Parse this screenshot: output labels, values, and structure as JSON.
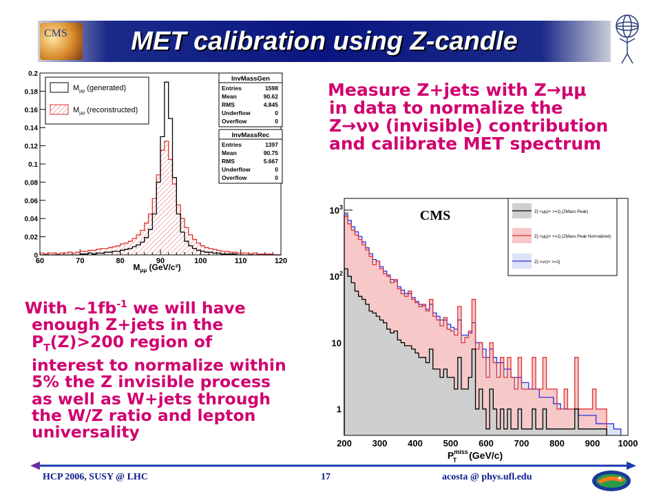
{
  "slide": {
    "title": "MET calibration using Z-candle",
    "logo_text": "CMS"
  },
  "right_text": {
    "line1": "Measure Z+jets with Z→μμ",
    "line2": "in data to normalize the",
    "line3": "Z→νν (invisible) contribution",
    "line4": "and calibrate MET spectrum"
  },
  "left_text": {
    "line1_a": "With ~1fb",
    "line1_sup": "-1",
    "line1_b": " we will have",
    "line2": "enough Z+jets in the",
    "line3_a": "P",
    "line3_sub": "T",
    "line3_b": "(Z)>200 region of",
    "line4": "interest to normalize within",
    "line5": "5% the Z invisible process",
    "line6": "as well as W+jets through",
    "line7": "the W/Z ratio and lepton",
    "line8": "universality"
  },
  "footer": {
    "left": "HCP 2006,    SUSY @ LHC",
    "page": "17",
    "right": "acosta @ phys.ufl.edu"
  },
  "chart_data": [
    {
      "type": "line",
      "title": "",
      "xlabel": "M",
      "xlabel_sub": "μμ",
      "xlabel_unit": " (GeV/c²)",
      "ylabel": "",
      "xlim": [
        60,
        120
      ],
      "ylim": [
        0,
        0.2
      ],
      "x_ticks": [
        "60",
        "70",
        "80",
        "90",
        "100",
        "110",
        "120"
      ],
      "y_ticks": [
        "0",
        "0.02",
        "0.04",
        "0.06",
        "0.08",
        "0.1",
        "0.12",
        "0.14",
        "0.16",
        "0.18",
        "0.2"
      ],
      "legend": [
        {
          "label_main": "M",
          "label_sub": "μμ",
          "label_rest": " (generated)",
          "color": "#000000"
        },
        {
          "label_main": "M",
          "label_sub": "μμ",
          "label_rest": " (reconstructed)",
          "color": "#e03030"
        }
      ],
      "stats": [
        {
          "name": "InvMassGen",
          "rows": [
            [
              "Entries",
              "1598"
            ],
            [
              "Mean",
              "90.62"
            ],
            [
              "RMS",
              "4.845"
            ],
            [
              "Underflow",
              "0"
            ],
            [
              "Overflow",
              "0"
            ]
          ]
        },
        {
          "name": "InvMassRec",
          "rows": [
            [
              "Entries",
              "1397"
            ],
            [
              "Mean",
              "90.75"
            ],
            [
              "RMS",
              "5.667"
            ],
            [
              "Underflow",
              "0"
            ],
            [
              "Overflow",
              "0"
            ]
          ]
        }
      ],
      "series": [
        {
          "name": "M μμ (generated)",
          "x": [
            60,
            61,
            62,
            63,
            64,
            65,
            66,
            67,
            68,
            69,
            70,
            71,
            72,
            73,
            74,
            75,
            76,
            77,
            78,
            79,
            80,
            81,
            82,
            83,
            84,
            85,
            86,
            87,
            88,
            89,
            90,
            91,
            92,
            93,
            94,
            95,
            96,
            97,
            98,
            99,
            100,
            101,
            102,
            103,
            104,
            105,
            106,
            107,
            108,
            109,
            110,
            111,
            112,
            113,
            114,
            115,
            116,
            117,
            118,
            119
          ],
          "values": [
            0,
            0,
            0,
            0,
            0,
            0,
            0,
            0,
            0,
            0,
            0.001,
            0.001,
            0.002,
            0.001,
            0.002,
            0.002,
            0.003,
            0.003,
            0.004,
            0.004,
            0.005,
            0.006,
            0.007,
            0.009,
            0.011,
            0.014,
            0.019,
            0.028,
            0.045,
            0.08,
            0.13,
            0.19,
            0.15,
            0.085,
            0.045,
            0.025,
            0.015,
            0.01,
            0.007,
            0.005,
            0.004,
            0.003,
            0.003,
            0.002,
            0.002,
            0.001,
            0.001,
            0.001,
            0.001,
            0,
            0,
            0,
            0,
            0,
            0,
            0,
            0,
            0,
            0,
            0
          ]
        },
        {
          "name": "M μμ (reconstructed)",
          "x": [
            60,
            61,
            62,
            63,
            64,
            65,
            66,
            67,
            68,
            69,
            70,
            71,
            72,
            73,
            74,
            75,
            76,
            77,
            78,
            79,
            80,
            81,
            82,
            83,
            84,
            85,
            86,
            87,
            88,
            89,
            90,
            91,
            92,
            93,
            94,
            95,
            96,
            97,
            98,
            99,
            100,
            101,
            102,
            103,
            104,
            105,
            106,
            107,
            108,
            109,
            110,
            111,
            112,
            113,
            114,
            115,
            116,
            117,
            118,
            119
          ],
          "values": [
            0.002,
            0.001,
            0.002,
            0.002,
            0.001,
            0.002,
            0.002,
            0.003,
            0.002,
            0.003,
            0.004,
            0.004,
            0.005,
            0.005,
            0.006,
            0.007,
            0.007,
            0.008,
            0.009,
            0.01,
            0.012,
            0.013,
            0.015,
            0.018,
            0.022,
            0.027,
            0.035,
            0.045,
            0.062,
            0.088,
            0.115,
            0.125,
            0.105,
            0.078,
            0.055,
            0.04,
            0.03,
            0.022,
            0.017,
            0.013,
            0.01,
            0.008,
            0.007,
            0.006,
            0.005,
            0.004,
            0.004,
            0.003,
            0.003,
            0.002,
            0.002,
            0.002,
            0.001,
            0.002,
            0.001,
            0.001,
            0.001,
            0.001,
            0,
            0
          ]
        }
      ]
    },
    {
      "type": "line",
      "title": "CMS",
      "xlabel": "P",
      "xlabel_sup": "miss",
      "xlabel_sub": "T",
      "xlabel_unit": " (GeV/c)",
      "ylabel": "",
      "log_y": true,
      "xlim": [
        200,
        1000
      ],
      "ylim": [
        0.4,
        1500
      ],
      "x_ticks": [
        "200",
        "300",
        "400",
        "500",
        "600",
        "700",
        "800",
        "900",
        "1000"
      ],
      "y_ticks": [
        {
          "base": "10",
          "exp": "3",
          "value": 1000
        },
        {
          "base": "10",
          "exp": "2",
          "value": 100
        },
        {
          "base": "10",
          "exp": "",
          "value": 10
        },
        {
          "base": "1",
          "exp": "",
          "value": 1
        }
      ],
      "legend": [
        {
          "label": "Z(->μμ)+ >=2j (ZMass Peak)",
          "color": "#000000"
        },
        {
          "label": "Z(->μμ)+ >=2j (ZMass Peak Normalized)",
          "color": "#e03030"
        },
        {
          "label": "Z(->νν)+ >=2j",
          "color": "#3030e0"
        }
      ],
      "series": [
        {
          "name": "Z(->μμ)+ >=2j (ZMass Peak)",
          "x": [
            200,
            210,
            220,
            230,
            240,
            250,
            260,
            270,
            280,
            290,
            300,
            310,
            320,
            330,
            340,
            350,
            360,
            370,
            380,
            390,
            400,
            410,
            420,
            430,
            440,
            450,
            460,
            470,
            480,
            490,
            500,
            510,
            520,
            530,
            540,
            550,
            560,
            570,
            580,
            590,
            600,
            610,
            620,
            630,
            640,
            650,
            660,
            670,
            680,
            690,
            700,
            710,
            720,
            730,
            740,
            750,
            760,
            770,
            780,
            790,
            800,
            810,
            820,
            830,
            840,
            850,
            860,
            870,
            880,
            890,
            900,
            910,
            920,
            930
          ],
          "values": [
            130,
            100,
            80,
            60,
            50,
            45,
            38,
            30,
            28,
            25,
            22,
            20,
            16,
            14,
            15,
            11,
            10,
            9,
            9,
            8,
            7,
            6,
            6,
            5,
            8,
            4,
            4,
            3,
            4,
            3,
            3,
            2,
            6,
            2,
            2,
            3,
            8,
            1,
            2,
            1,
            0.5,
            2,
            1,
            0.5,
            1,
            0.5,
            1,
            0.5,
            0.5,
            1,
            0.5,
            0.5,
            0.5,
            1,
            0.5,
            0.5,
            1,
            0.5,
            0.5,
            0.5,
            0.5,
            0.5,
            0.5,
            0.5,
            0.5,
            1,
            0.5,
            0.5,
            0.5,
            0.5,
            0.5,
            0.5,
            0.5,
            0.5
          ]
        },
        {
          "name": "Z(->μμ)+ >=2j (ZMass Peak Normalized)",
          "x": [
            200,
            210,
            220,
            230,
            240,
            250,
            260,
            270,
            280,
            290,
            300,
            310,
            320,
            330,
            340,
            350,
            360,
            370,
            380,
            390,
            400,
            410,
            420,
            430,
            440,
            450,
            460,
            470,
            480,
            490,
            500,
            510,
            520,
            530,
            540,
            550,
            560,
            570,
            580,
            590,
            600,
            610,
            620,
            630,
            640,
            650,
            660,
            670,
            680,
            690,
            700,
            710,
            720,
            730,
            740,
            750,
            760,
            770,
            780,
            790,
            800,
            810,
            820,
            830,
            840,
            850,
            860,
            870,
            880,
            890,
            900,
            910,
            920,
            930
          ],
          "values": [
            800,
            620,
            500,
            420,
            360,
            300,
            250,
            200,
            150,
            170,
            130,
            110,
            100,
            80,
            90,
            65,
            55,
            50,
            60,
            45,
            40,
            35,
            38,
            30,
            45,
            25,
            22,
            18,
            24,
            16,
            15,
            13,
            35,
            10,
            12,
            15,
            45,
            8,
            10,
            6,
            3,
            10,
            5,
            3,
            6,
            3,
            6,
            3,
            2,
            6,
            2,
            2,
            2,
            6,
            2,
            2,
            6,
            2,
            2,
            2,
            1,
            1,
            2,
            1,
            1,
            6,
            1,
            1,
            1,
            1,
            2,
            1,
            1,
            1
          ]
        },
        {
          "name": "Z(->νν)+ >=2j",
          "x": [
            200,
            210,
            220,
            230,
            240,
            250,
            260,
            270,
            280,
            290,
            300,
            310,
            320,
            330,
            340,
            350,
            360,
            370,
            380,
            390,
            400,
            410,
            420,
            430,
            440,
            450,
            460,
            470,
            480,
            490,
            500,
            510,
            520,
            530,
            540,
            550,
            560,
            570,
            580,
            590,
            600,
            610,
            620,
            630,
            640,
            650,
            660,
            670,
            680,
            690,
            700,
            710,
            720,
            730,
            740,
            750,
            760,
            770,
            780,
            790,
            800,
            810,
            820,
            830,
            840,
            850,
            860,
            870,
            880,
            890,
            900,
            910,
            920,
            930,
            940,
            950,
            960,
            970
          ],
          "values": [
            850,
            700,
            560,
            470,
            400,
            330,
            270,
            220,
            180,
            170,
            140,
            120,
            105,
            90,
            85,
            70,
            62,
            55,
            55,
            48,
            42,
            38,
            36,
            32,
            38,
            28,
            25,
            22,
            22,
            19,
            17,
            16,
            22,
            13,
            13,
            14,
            20,
            10,
            10,
            8,
            6,
            8,
            6,
            5,
            5,
            4,
            4,
            3,
            3,
            3,
            2.5,
            2.5,
            2,
            2,
            2,
            1.5,
            1.5,
            1.5,
            1.5,
            1.2,
            1.2,
            1,
            1,
            1,
            1,
            1,
            0.8,
            0.8,
            0.8,
            0.8,
            0.8,
            0.6,
            0.6,
            0.6,
            0.6,
            0.6,
            0.5,
            0.5
          ]
        }
      ]
    }
  ]
}
